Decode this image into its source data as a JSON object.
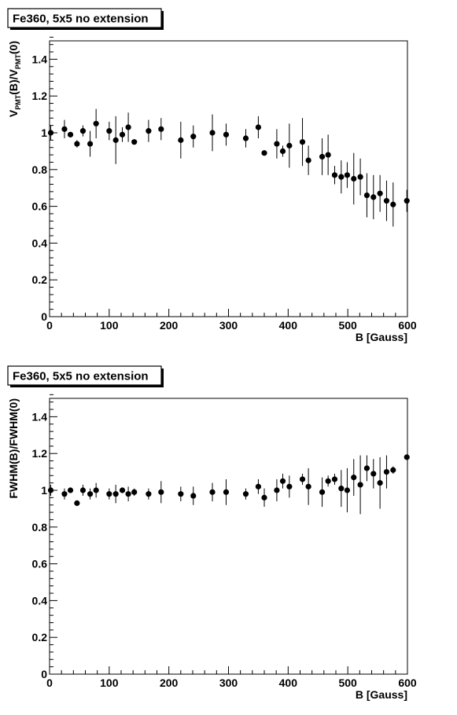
{
  "chart_data": [
    {
      "type": "scatter",
      "title": "Fe360, 5x5 no extension",
      "xlabel": "B [Gauss]",
      "ylabel": {
        "main": "V",
        "sub1": "PMT",
        "mid": "(B)/V",
        "sub2": "PMT",
        "end": "(0)"
      },
      "xlim": [
        0,
        600
      ],
      "ylim": [
        0,
        1.5
      ],
      "xticks": [
        0,
        100,
        200,
        300,
        400,
        500,
        600
      ],
      "yticks": [
        0,
        0.2,
        0.4,
        0.6,
        0.8,
        1,
        1.2,
        1.4
      ],
      "points": [
        {
          "x": 2,
          "y": 1.0,
          "err": 0.04
        },
        {
          "x": 25,
          "y": 1.02,
          "err": 0.05
        },
        {
          "x": 35,
          "y": 0.99,
          "err": 0.01
        },
        {
          "x": 46,
          "y": 0.94,
          "err": 0.02
        },
        {
          "x": 56,
          "y": 1.01,
          "err": 0.03
        },
        {
          "x": 68,
          "y": 0.94,
          "err": 0.07
        },
        {
          "x": 78,
          "y": 1.05,
          "err": 0.08
        },
        {
          "x": 100,
          "y": 1.01,
          "err": 0.05
        },
        {
          "x": 111,
          "y": 0.96,
          "err": 0.13
        },
        {
          "x": 122,
          "y": 0.99,
          "err": 0.04
        },
        {
          "x": 132,
          "y": 1.03,
          "err": 0.08
        },
        {
          "x": 142,
          "y": 0.95,
          "err": 0.01
        },
        {
          "x": 166,
          "y": 1.01,
          "err": 0.06
        },
        {
          "x": 187,
          "y": 1.02,
          "err": 0.06
        },
        {
          "x": 220,
          "y": 0.96,
          "err": 0.1
        },
        {
          "x": 241,
          "y": 0.98,
          "err": 0.06
        },
        {
          "x": 273,
          "y": 1.0,
          "err": 0.1
        },
        {
          "x": 296,
          "y": 0.99,
          "err": 0.06
        },
        {
          "x": 329,
          "y": 0.97,
          "err": 0.05
        },
        {
          "x": 350,
          "y": 1.03,
          "err": 0.06
        },
        {
          "x": 360,
          "y": 0.89,
          "err": 0.01
        },
        {
          "x": 381,
          "y": 0.94,
          "err": 0.08
        },
        {
          "x": 391,
          "y": 0.9,
          "err": 0.03
        },
        {
          "x": 402,
          "y": 0.93,
          "err": 0.12
        },
        {
          "x": 424,
          "y": 0.95,
          "err": 0.13
        },
        {
          "x": 434,
          "y": 0.85,
          "err": 0.08
        },
        {
          "x": 457,
          "y": 0.87,
          "err": 0.1
        },
        {
          "x": 467,
          "y": 0.88,
          "err": 0.11
        },
        {
          "x": 478,
          "y": 0.77,
          "err": 0.05
        },
        {
          "x": 489,
          "y": 0.76,
          "err": 0.09
        },
        {
          "x": 499,
          "y": 0.77,
          "err": 0.07
        },
        {
          "x": 510,
          "y": 0.75,
          "err": 0.14
        },
        {
          "x": 521,
          "y": 0.76,
          "err": 0.1
        },
        {
          "x": 532,
          "y": 0.66,
          "err": 0.12
        },
        {
          "x": 543,
          "y": 0.65,
          "err": 0.12
        },
        {
          "x": 554,
          "y": 0.67,
          "err": 0.1
        },
        {
          "x": 565,
          "y": 0.63,
          "err": 0.11
        },
        {
          "x": 576,
          "y": 0.61,
          "err": 0.12
        },
        {
          "x": 599,
          "y": 0.63,
          "err": 0.06
        }
      ]
    },
    {
      "type": "scatter",
      "title": "Fe360, 5x5 no extension",
      "xlabel": "B [Gauss]",
      "ylabel": "FWHM(B)/FWHM(0)",
      "xlim": [
        0,
        600
      ],
      "ylim": [
        0,
        1.5
      ],
      "xticks": [
        0,
        100,
        200,
        300,
        400,
        500,
        600
      ],
      "yticks": [
        0,
        0.2,
        0.4,
        0.6,
        0.8,
        1,
        1.2,
        1.4
      ],
      "points": [
        {
          "x": 2,
          "y": 1.0,
          "err": 0.03
        },
        {
          "x": 25,
          "y": 0.98,
          "err": 0.03
        },
        {
          "x": 35,
          "y": 1.0,
          "err": 0.01
        },
        {
          "x": 46,
          "y": 0.93,
          "err": 0.01
        },
        {
          "x": 56,
          "y": 1.0,
          "err": 0.03
        },
        {
          "x": 68,
          "y": 0.98,
          "err": 0.03
        },
        {
          "x": 78,
          "y": 1.0,
          "err": 0.04
        },
        {
          "x": 100,
          "y": 0.98,
          "err": 0.03
        },
        {
          "x": 111,
          "y": 0.98,
          "err": 0.05
        },
        {
          "x": 122,
          "y": 1.0,
          "err": 0.01
        },
        {
          "x": 132,
          "y": 0.98,
          "err": 0.04
        },
        {
          "x": 142,
          "y": 0.99,
          "err": 0.02
        },
        {
          "x": 166,
          "y": 0.98,
          "err": 0.03
        },
        {
          "x": 187,
          "y": 0.99,
          "err": 0.06
        },
        {
          "x": 220,
          "y": 0.98,
          "err": 0.04
        },
        {
          "x": 241,
          "y": 0.97,
          "err": 0.05
        },
        {
          "x": 273,
          "y": 0.99,
          "err": 0.05
        },
        {
          "x": 296,
          "y": 0.99,
          "err": 0.07
        },
        {
          "x": 329,
          "y": 0.98,
          "err": 0.03
        },
        {
          "x": 350,
          "y": 1.02,
          "err": 0.04
        },
        {
          "x": 360,
          "y": 0.96,
          "err": 0.05
        },
        {
          "x": 381,
          "y": 1.0,
          "err": 0.06
        },
        {
          "x": 391,
          "y": 1.05,
          "err": 0.04
        },
        {
          "x": 402,
          "y": 1.02,
          "err": 0.06
        },
        {
          "x": 424,
          "y": 1.06,
          "err": 0.03
        },
        {
          "x": 434,
          "y": 1.02,
          "err": 0.1
        },
        {
          "x": 457,
          "y": 0.99,
          "err": 0.08
        },
        {
          "x": 467,
          "y": 1.05,
          "err": 0.03
        },
        {
          "x": 478,
          "y": 1.06,
          "err": 0.03
        },
        {
          "x": 489,
          "y": 1.01,
          "err": 0.1
        },
        {
          "x": 499,
          "y": 1.0,
          "err": 0.12
        },
        {
          "x": 510,
          "y": 1.07,
          "err": 0.1
        },
        {
          "x": 521,
          "y": 1.03,
          "err": 0.16
        },
        {
          "x": 532,
          "y": 1.12,
          "err": 0.07
        },
        {
          "x": 543,
          "y": 1.09,
          "err": 0.08
        },
        {
          "x": 554,
          "y": 1.04,
          "err": 0.14
        },
        {
          "x": 565,
          "y": 1.1,
          "err": 0.09
        },
        {
          "x": 576,
          "y": 1.11,
          "err": 0.02
        },
        {
          "x": 599,
          "y": 1.18,
          "err": 0.01
        }
      ]
    }
  ]
}
